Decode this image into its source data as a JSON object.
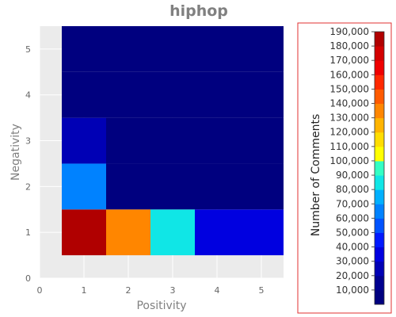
{
  "chart_data": {
    "type": "heatmap",
    "title": "hiphop",
    "xlabel": "Positivity",
    "ylabel": "Negativity",
    "xlim": [
      0,
      5.5
    ],
    "ylim": [
      0,
      5.5
    ],
    "x_ticks": [
      "0",
      "1",
      "2",
      "3",
      "4",
      "5"
    ],
    "y_ticks": [
      "0",
      "1",
      "2",
      "3",
      "4",
      "5"
    ],
    "cells": [
      {
        "x": 1,
        "y": 1,
        "value": 180000
      },
      {
        "x": 2,
        "y": 1,
        "value": 137000
      },
      {
        "x": 3,
        "y": 1,
        "value": 87000
      },
      {
        "x": 4,
        "y": 1,
        "value": 32000
      },
      {
        "x": 5,
        "y": 1,
        "value": 32000
      },
      {
        "x": 1,
        "y": 2,
        "value": 63000
      },
      {
        "x": 2,
        "y": 2,
        "value": 1000
      },
      {
        "x": 3,
        "y": 2,
        "value": 1000
      },
      {
        "x": 4,
        "y": 2,
        "value": 1000
      },
      {
        "x": 5,
        "y": 2,
        "value": 1000
      },
      {
        "x": 1,
        "y": 3,
        "value": 27000
      },
      {
        "x": 2,
        "y": 3,
        "value": 1000
      },
      {
        "x": 3,
        "y": 3,
        "value": 1000
      },
      {
        "x": 4,
        "y": 3,
        "value": 1000
      },
      {
        "x": 5,
        "y": 3,
        "value": 1000
      },
      {
        "x": 1,
        "y": 4,
        "value": 1000
      },
      {
        "x": 2,
        "y": 4,
        "value": 1000
      },
      {
        "x": 3,
        "y": 4,
        "value": 1000
      },
      {
        "x": 4,
        "y": 4,
        "value": 1000
      },
      {
        "x": 5,
        "y": 4,
        "value": 1000
      },
      {
        "x": 1,
        "y": 5,
        "value": 1000
      },
      {
        "x": 2,
        "y": 5,
        "value": 1000
      },
      {
        "x": 3,
        "y": 5,
        "value": 1000
      },
      {
        "x": 4,
        "y": 5,
        "value": 1000
      },
      {
        "x": 5,
        "y": 5,
        "value": 1000
      }
    ],
    "colorbar": {
      "label": "Number of Comments",
      "min": 0,
      "max": 190000,
      "ticks": [
        "10,000",
        "20,000",
        "30,000",
        "40,000",
        "50,000",
        "60,000",
        "70,000",
        "80,000",
        "90,000",
        "100,000",
        "110,000",
        "120,000",
        "130,000",
        "140,000",
        "150,000",
        "160,000",
        "170,000",
        "180,000",
        "190,000"
      ],
      "tick_values": [
        10000,
        20000,
        30000,
        40000,
        50000,
        60000,
        70000,
        80000,
        90000,
        100000,
        110000,
        120000,
        130000,
        140000,
        150000,
        160000,
        170000,
        180000,
        190000
      ],
      "colors": [
        "#00007f",
        "#00008f",
        "#0000b5",
        "#0000e0",
        "#0019ff",
        "#0052ff",
        "#0082ff",
        "#00b0ff",
        "#10e6e6",
        "#33ffc4",
        "#ffff00",
        "#ffdd00",
        "#ffb400",
        "#ff8600",
        "#ff5a00",
        "#ff2800",
        "#ef0000",
        "#d30000",
        "#b00000"
      ]
    },
    "grid": true,
    "background": "#ebebeb"
  }
}
